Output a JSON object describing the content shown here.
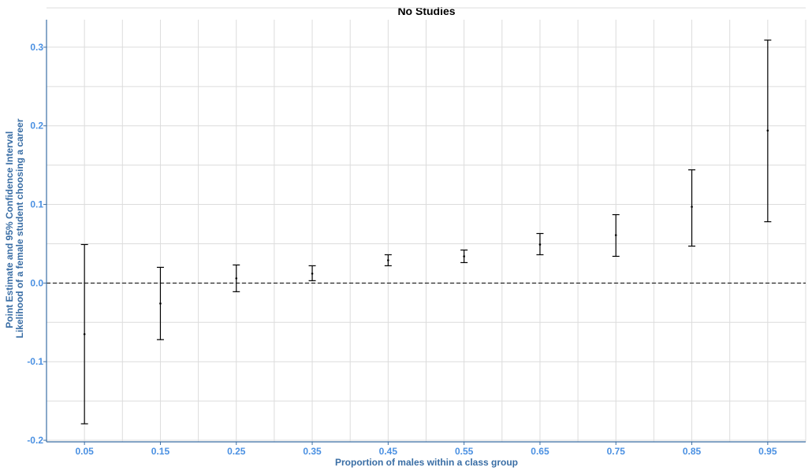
{
  "chart_data": {
    "type": "errorbar",
    "title": "No Studies",
    "xlabel": "Proportion of males within a class group",
    "ylabel_lines": [
      "Point Estimate and 95% Confidence Interval",
      "Likelihood of a female student choosing a career"
    ],
    "x_tick_labels": [
      "0.05",
      "0.15",
      "0.25",
      "0.35",
      "0.45",
      "0.55",
      "0.65",
      "0.75",
      "0.85",
      "0.95"
    ],
    "y_tick_labels": [
      "-0.2",
      "-0.1",
      "0.0",
      "0.1",
      "0.2",
      "0.3"
    ],
    "xlim": [
      0.0,
      1.0
    ],
    "ylim": [
      -0.202,
      0.335
    ],
    "reference_line_y": 0.0,
    "grid": true,
    "points": [
      {
        "x": 0.05,
        "estimate": -0.065,
        "lower": -0.179,
        "upper": 0.049
      },
      {
        "x": 0.15,
        "estimate": -0.026,
        "lower": -0.072,
        "upper": 0.02
      },
      {
        "x": 0.25,
        "estimate": 0.006,
        "lower": -0.011,
        "upper": 0.023
      },
      {
        "x": 0.35,
        "estimate": 0.012,
        "lower": 0.003,
        "upper": 0.022
      },
      {
        "x": 0.45,
        "estimate": 0.029,
        "lower": 0.022,
        "upper": 0.036
      },
      {
        "x": 0.55,
        "estimate": 0.034,
        "lower": 0.026,
        "upper": 0.042
      },
      {
        "x": 0.65,
        "estimate": 0.049,
        "lower": 0.036,
        "upper": 0.063
      },
      {
        "x": 0.75,
        "estimate": 0.061,
        "lower": 0.034,
        "upper": 0.087
      },
      {
        "x": 0.85,
        "estimate": 0.097,
        "lower": 0.047,
        "upper": 0.144
      },
      {
        "x": 0.95,
        "estimate": 0.194,
        "lower": 0.078,
        "upper": 0.309
      }
    ]
  }
}
